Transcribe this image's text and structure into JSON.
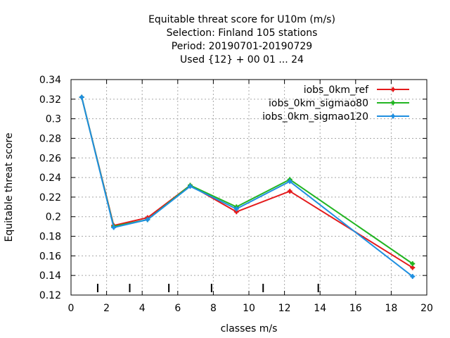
{
  "chart_data": {
    "type": "line",
    "title_lines": [
      "Equitable threat score  for U10m (m/s)",
      "Selection: Finland    105 stations",
      "Period: 20190701-20190729",
      "Used {12} + 00 01 ... 24"
    ],
    "xlabel": "classes m/s",
    "ylabel": "Equitable threat score",
    "xlim": [
      0,
      20
    ],
    "ylim": [
      0.12,
      0.34
    ],
    "xticks": [
      0,
      2,
      4,
      6,
      8,
      10,
      12,
      14,
      16,
      18,
      20
    ],
    "yticks": [
      0.12,
      0.14,
      0.16,
      0.18,
      0.2,
      0.22,
      0.24,
      0.26,
      0.28,
      0.3,
      0.32,
      0.34
    ],
    "grid": true,
    "legend_position": "top-right",
    "class_boundaries": [
      1.5,
      3.3,
      5.5,
      7.9,
      10.8,
      13.9
    ],
    "series": [
      {
        "name": "iobs_0km_ref",
        "color": "#e41a1c",
        "x": [
          0.6,
          2.4,
          4.3,
          6.7,
          9.3,
          12.3,
          19.2
        ],
        "values": [
          0.322,
          0.191,
          0.199,
          0.232,
          0.205,
          0.226,
          0.148
        ]
      },
      {
        "name": "iobs_0km_sigmao80",
        "color": "#22b522",
        "x": [
          0.6,
          2.4,
          4.3,
          6.7,
          9.3,
          12.3,
          19.2
        ],
        "values": [
          0.322,
          0.19,
          0.197,
          0.232,
          0.21,
          0.238,
          0.152
        ]
      },
      {
        "name": "iobs_0km_sigmao120",
        "color": "#1f8fe0",
        "x": [
          0.6,
          2.4,
          4.3,
          6.7,
          9.3,
          12.3,
          19.2
        ],
        "values": [
          0.322,
          0.189,
          0.197,
          0.231,
          0.208,
          0.236,
          0.139
        ]
      }
    ]
  }
}
